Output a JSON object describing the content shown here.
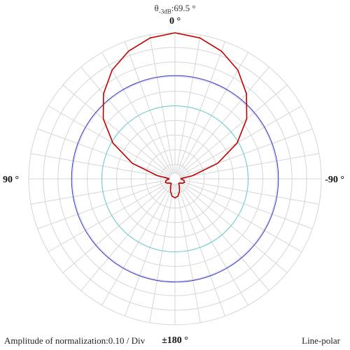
{
  "title": {
    "prefix": "θ",
    "subscript": "-3dB",
    "value": ":69.5 °"
  },
  "angle_labels": {
    "top": "0 °",
    "bottom": "±180 °",
    "left": "90 °",
    "right": "-90 °"
  },
  "footer": {
    "amplitude_label": "Amplitude of normalization:0.10 / Div",
    "mode_label": "Line-polar"
  },
  "colors": {
    "grid": "#d6d6d6",
    "pattern": "#c00000",
    "reference_blue": "#3333cc",
    "reference_cyan": "#66cccc"
  },
  "chart_data": {
    "type": "polar-line",
    "r_range": [
      0,
      1
    ],
    "r_step": 0.1,
    "theta_step_deg": 10,
    "grid": true,
    "reference_circles": [
      {
        "name": "",
        "r": 0.707,
        "color": "#3333cc"
      },
      {
        "name": "",
        "r": 0.5,
        "color": "#66cccc"
      }
    ],
    "series": [
      {
        "color": "#c00000",
        "theta_deg": [
          -180,
          -170,
          -160,
          -150,
          -140,
          -130,
          -120,
          -110,
          -100,
          -95,
          -90,
          -85,
          -80,
          -70,
          -60,
          -50,
          -40,
          -30,
          -20,
          -10,
          0,
          10,
          20,
          30,
          40,
          50,
          60,
          70,
          80,
          85,
          90,
          95,
          100,
          110,
          120,
          130,
          140,
          150,
          160,
          170,
          180
        ],
        "r": [
          0.13,
          0.12,
          0.09,
          0.06,
          0.04,
          0.045,
          0.06,
          0.07,
          0.062,
          0.05,
          0.04,
          0.05,
          0.12,
          0.31,
          0.49,
          0.64,
          0.76,
          0.86,
          0.93,
          0.98,
          1.0,
          0.98,
          0.93,
          0.86,
          0.76,
          0.64,
          0.49,
          0.31,
          0.12,
          0.05,
          0.04,
          0.05,
          0.062,
          0.07,
          0.06,
          0.045,
          0.04,
          0.06,
          0.09,
          0.12,
          0.13
        ]
      }
    ]
  }
}
